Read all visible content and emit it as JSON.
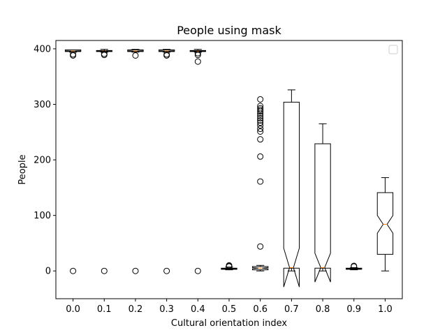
{
  "chart_data": {
    "type": "boxplot",
    "title": "People using mask",
    "xlabel": "Cultural orientation index",
    "ylabel": "People",
    "categories": [
      "0.0",
      "0.1",
      "0.2",
      "0.3",
      "0.4",
      "0.5",
      "0.6",
      "0.7",
      "0.8",
      "0.9",
      "1.0"
    ],
    "ylim": [
      -50,
      415
    ],
    "yticks": [
      0,
      100,
      200,
      300,
      400
    ],
    "grid": false,
    "legend": {
      "placement": "top-right",
      "entries": []
    },
    "boxes": [
      {
        "category": "0.0",
        "notch": true,
        "whislo": 394,
        "q1": 395,
        "med": 396,
        "q3": 398,
        "whishi": 398,
        "cilo": 395.5,
        "cihi": 396.5,
        "fliers": [
          0,
          388,
          390
        ]
      },
      {
        "category": "0.1",
        "notch": true,
        "whislo": 394,
        "q1": 395,
        "med": 396,
        "q3": 397,
        "whishi": 399,
        "cilo": 395.5,
        "cihi": 396.5,
        "fliers": [
          0,
          389,
          391
        ]
      },
      {
        "category": "0.2",
        "notch": true,
        "whislo": 394,
        "q1": 395,
        "med": 396,
        "q3": 398,
        "whishi": 399,
        "cilo": 395.5,
        "cihi": 396.5,
        "fliers": [
          0,
          388
        ]
      },
      {
        "category": "0.3",
        "notch": true,
        "whislo": 394,
        "q1": 395,
        "med": 396,
        "q3": 398,
        "whishi": 399,
        "cilo": 395.5,
        "cihi": 396.5,
        "fliers": [
          0,
          388,
          390
        ]
      },
      {
        "category": "0.4",
        "notch": true,
        "whislo": 394,
        "q1": 395,
        "med": 396,
        "q3": 397,
        "whishi": 399,
        "cilo": 395.5,
        "cihi": 396.5,
        "fliers": [
          0,
          377,
          389,
          392
        ]
      },
      {
        "category": "0.5",
        "notch": true,
        "whislo": 2,
        "q1": 3,
        "med": 4,
        "q3": 5,
        "whishi": 7,
        "cilo": 3.5,
        "cihi": 4.5,
        "fliers": [
          8,
          9,
          10
        ]
      },
      {
        "category": "0.6",
        "notch": true,
        "whislo": 0,
        "q1": 2,
        "med": 5,
        "q3": 8,
        "whishi": 10,
        "cilo": 4,
        "cihi": 6,
        "fliers": [
          44,
          161,
          206,
          237,
          251,
          256,
          262,
          267,
          271,
          275,
          279,
          283,
          287,
          290,
          293,
          297,
          309
        ]
      },
      {
        "category": "0.7",
        "notch": true,
        "whislo": 0,
        "q1": 5,
        "med": 6,
        "q3": 304,
        "whishi": 326,
        "cilo": -29,
        "cihi": 41,
        "fliers": []
      },
      {
        "category": "0.8",
        "notch": true,
        "whislo": 0,
        "q1": 5,
        "med": 6,
        "q3": 229,
        "whishi": 265,
        "cilo": -20,
        "cihi": 32,
        "fliers": []
      },
      {
        "category": "0.9",
        "notch": true,
        "whislo": 2,
        "q1": 3,
        "med": 4,
        "q3": 5,
        "whishi": 6,
        "cilo": 3.5,
        "cihi": 4.5,
        "fliers": [
          8,
          9
        ]
      },
      {
        "category": "1.0",
        "notch": true,
        "whislo": 0,
        "q1": 30,
        "med": 84,
        "q3": 141,
        "whishi": 168,
        "cilo": 68,
        "cihi": 100,
        "fliers": []
      }
    ]
  },
  "colors": {
    "box": "#000000",
    "median": "#ff7f0e",
    "flier": "#000000",
    "legend_border": "#cccccc",
    "background": "#ffffff"
  }
}
